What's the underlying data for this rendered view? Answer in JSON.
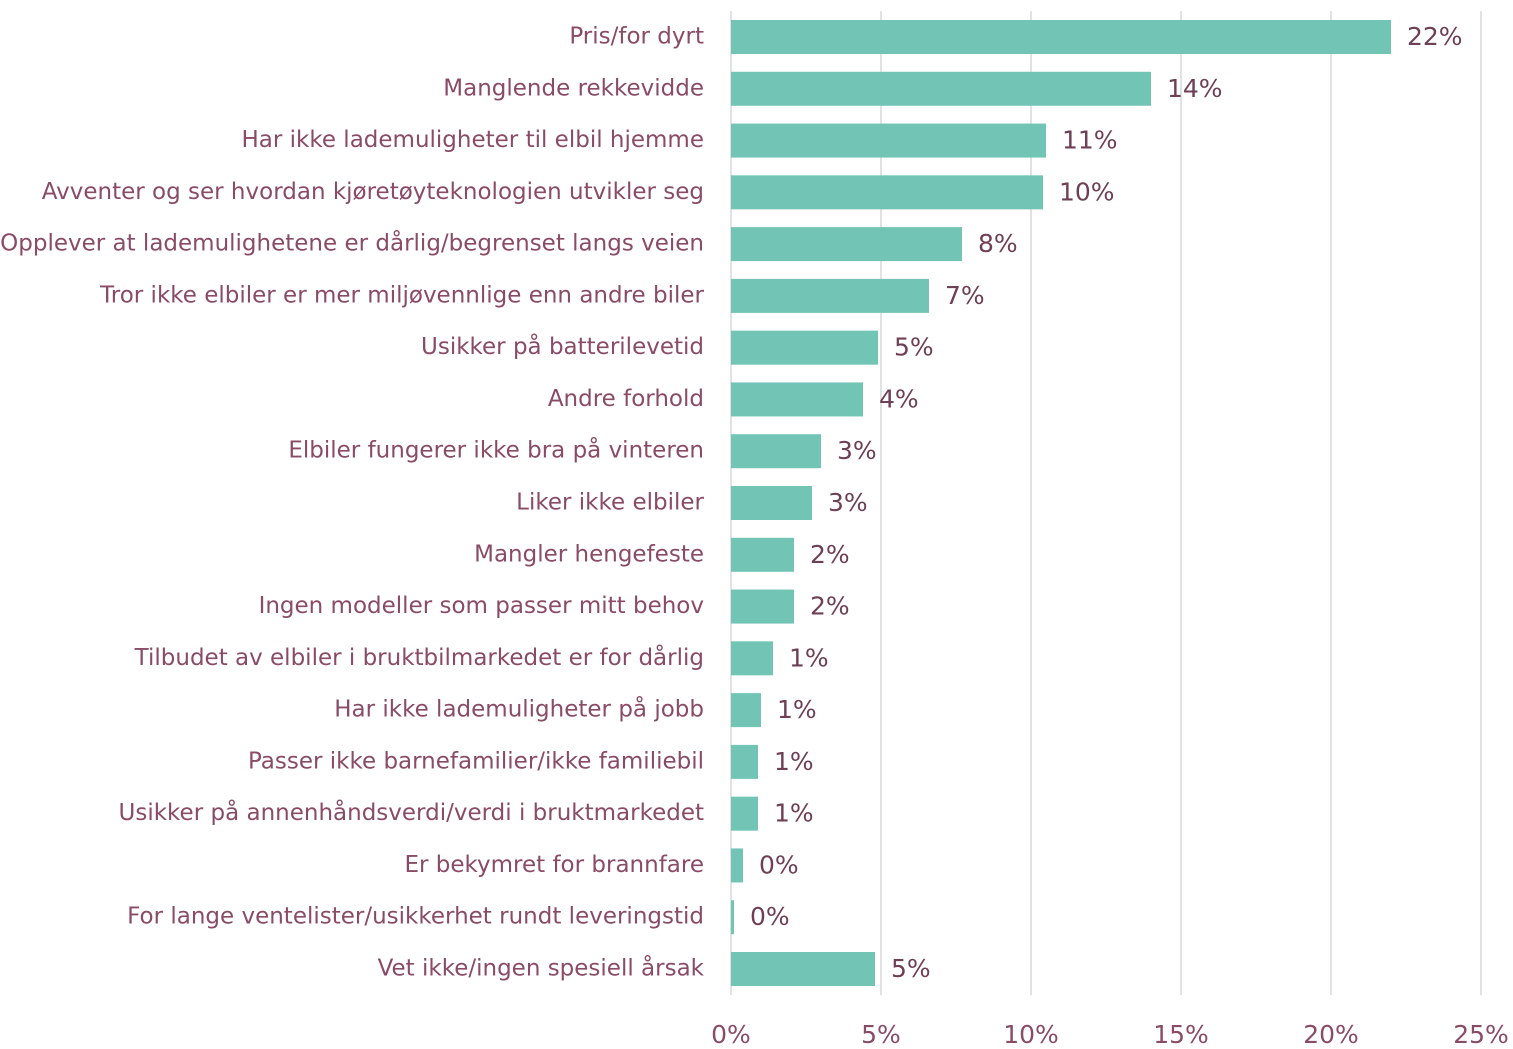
{
  "chart_data": {
    "type": "hbar",
    "categories": [
      "Pris/for dyrt",
      "Manglende rekkevidde",
      "Har ikke lademuligheter til elbil hjemme",
      "Avventer og ser hvordan kjøretøyteknologien utvikler seg",
      "Opplever at lademulighetene er dårlig/begrenset langs veien",
      "Tror ikke elbiler er mer miljøvennlige enn andre biler",
      "Usikker på batterilevetid",
      "Andre forhold",
      "Elbiler fungerer ikke bra på vinteren",
      "Liker ikke elbiler",
      "Mangler hengefeste",
      "Ingen modeller som passer mitt behov",
      "Tilbudet av elbiler i bruktbilmarkedet er for dårlig",
      "Har ikke lademuligheter på jobb",
      "Passer ikke barnefamilier/ikke familiebil",
      "Usikker på annenhåndsverdi/verdi i bruktmarkedet",
      "Er bekymret for brannfare",
      "For lange ventelister/usikkerhet rundt leveringstid",
      "Vet ikke/ingen spesiell årsak"
    ],
    "values": [
      22.0,
      14.0,
      10.5,
      10.4,
      7.7,
      6.6,
      4.9,
      4.4,
      3.0,
      2.7,
      2.1,
      2.1,
      1.4,
      1.0,
      0.9,
      0.9,
      0.4,
      0.1,
      4.8
    ],
    "value_labels": [
      "22%",
      "14%",
      "11%",
      "10%",
      "8%",
      "7%",
      "5%",
      "4%",
      "3%",
      "3%",
      "2%",
      "2%",
      "1%",
      "1%",
      "1%",
      "1%",
      "0%",
      "0%",
      "5%"
    ],
    "color": "#72c4b4",
    "xlim": [
      0,
      25
    ],
    "xticks": [
      {
        "value": 0,
        "label": "0%"
      },
      {
        "value": 5,
        "label": "5%"
      },
      {
        "value": 10,
        "label": "10%"
      },
      {
        "value": 15,
        "label": "15%"
      },
      {
        "value": 20,
        "label": "20%"
      },
      {
        "value": 25,
        "label": "25%"
      }
    ],
    "grid": true
  }
}
